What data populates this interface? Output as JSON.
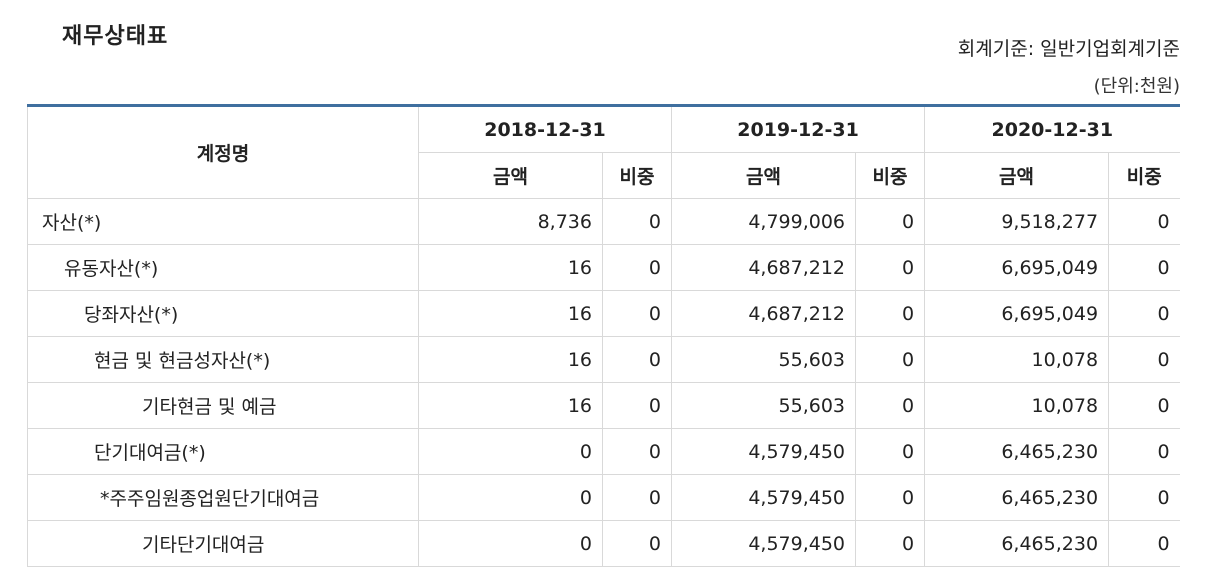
{
  "title": "재무상태표",
  "standard": "회계기준: 일반기업회계기준",
  "unit": "(단위:천원)",
  "table": {
    "account_header": "계정명",
    "periods": [
      "2018-12-31",
      "2019-12-31",
      "2020-12-31"
    ],
    "amount_label": "금액",
    "ratio_label": "비중",
    "rows": [
      {
        "name": "자산(*)",
        "indent": 0,
        "cells": [
          "8,736",
          "0",
          "4,799,006",
          "0",
          "9,518,277",
          "0"
        ]
      },
      {
        "name": "유동자산(*)",
        "indent": 1,
        "cells": [
          "16",
          "0",
          "4,687,212",
          "0",
          "6,695,049",
          "0"
        ]
      },
      {
        "name": "당좌자산(*)",
        "indent": 2,
        "cells": [
          "16",
          "0",
          "4,687,212",
          "0",
          "6,695,049",
          "0"
        ]
      },
      {
        "name": "현금 및 현금성자산(*)",
        "indent": 3,
        "cells": [
          "16",
          "0",
          "55,603",
          "0",
          "10,078",
          "0"
        ]
      },
      {
        "name": "기타현금 및 예금",
        "indent": 4,
        "cells": [
          "16",
          "0",
          "55,603",
          "0",
          "10,078",
          "0"
        ]
      },
      {
        "name": "단기대여금(*)",
        "indent": 3,
        "cells": [
          "0",
          "0",
          "4,579,450",
          "0",
          "6,465,230",
          "0"
        ]
      },
      {
        "name": "*주주임원종업원단기대여금",
        "indent": 5,
        "cells": [
          "0",
          "0",
          "4,579,450",
          "0",
          "6,465,230",
          "0"
        ]
      },
      {
        "name": "기타단기대여금",
        "indent": 4,
        "cells": [
          "0",
          "0",
          "4,579,450",
          "0",
          "6,465,230",
          "0"
        ]
      }
    ]
  }
}
